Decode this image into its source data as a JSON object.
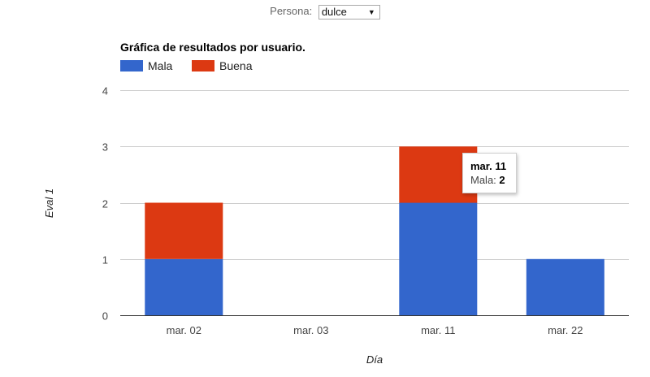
{
  "filter": {
    "label": "Persona:",
    "value": "dulce"
  },
  "chart_data": {
    "type": "bar",
    "stacked": true,
    "title": "Gráfica de resultados por usuario.",
    "xlabel": "Día",
    "ylabel": "Eval 1",
    "categories": [
      "mar. 02",
      "mar. 03",
      "mar. 11",
      "mar. 22"
    ],
    "series": [
      {
        "name": "Mala",
        "color": "#3366cc",
        "values": [
          1,
          0,
          2,
          1
        ]
      },
      {
        "name": "Buena",
        "color": "#dc3912",
        "values": [
          1,
          0,
          1,
          0
        ]
      }
    ],
    "ylim": [
      0,
      4
    ],
    "yticks": [
      "0",
      "1",
      "2",
      "3",
      "4"
    ],
    "grid": true,
    "legend": "top-left"
  },
  "tooltip": {
    "title": "mar. 11",
    "series": "Mala:",
    "value": "2"
  }
}
